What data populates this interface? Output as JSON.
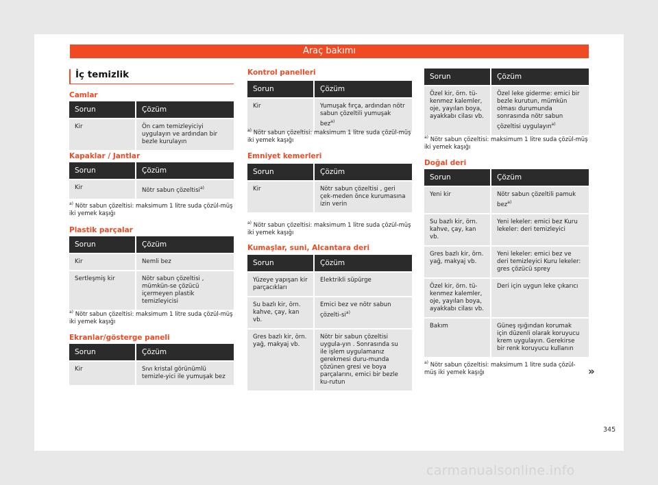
{
  "header": "Araç bakımı",
  "page_title": "İç temizlik",
  "column_header": {
    "problem": "Sorun",
    "solution": "Çözüm"
  },
  "sections": {
    "camlar": {
      "title": "Camlar",
      "rows": [
        [
          "Kir",
          "Ön cam temizleyiciyi uygulayın ve ardından bir bezle kurulayın"
        ]
      ]
    },
    "kapaklar": {
      "title": "Kapaklar / Jantlar",
      "rows": [
        [
          "Kir",
          "Nötr sabun çözeltisi"
        ]
      ],
      "footnote": "Nötr sabun çözeltisi: maksimum 1 litre suda çözül-müş iki yemek kaşığı"
    },
    "plastik": {
      "title": "Plastik parçalar",
      "rows": [
        [
          "Kir",
          "Nemli bez"
        ],
        [
          "Sertleşmiş kir",
          "Nötr sabun çözeltisi , mümkün-se çözücü içermeyen plastik temizleyicisi"
        ]
      ],
      "footnote": "Nötr sabun çözeltisi: maksimum 1 litre suda çözül-müş iki yemek kaşığı"
    },
    "ekranlar": {
      "title": "Ekranlar/gösterge paneli",
      "rows": [
        [
          "Kir",
          "Sıvı kristal görünümlü temizle-yici ile yumuşak bez"
        ]
      ]
    },
    "kontrol": {
      "title": "Kontrol panelleri",
      "rows": [
        [
          "Kir",
          "Yumuşak fırça, ardından nötr sabun çözeltili yumuşak bez"
        ]
      ],
      "footnote": "Nötr sabun çözeltisi: maksimum 1 litre suda çözül-müş iki yemek kaşığı"
    },
    "emniyet": {
      "title": "Emniyet kemerleri",
      "rows": [
        [
          "Kir",
          "Nötr sabun çözeltisi , geri çek-meden önce kurumasına izin verin"
        ]
      ],
      "footnote": "Nötr sabun çözeltisi: maksimum 1 litre suda çözül-müş iki yemek kaşığı"
    },
    "kumas": {
      "title": "Kumaşlar, suni, Alcantara deri",
      "rows": [
        [
          "Yüzeye yapışan kir parçacıkları",
          "Elektrikli süpürge"
        ],
        [
          "Su bazlı kir, örn. kahve, çay, kan vb.",
          "Emici bez ve nötr sabun çözelti-si"
        ],
        [
          "Gres bazlı kir, örn. yağ, makyaj vb.",
          "Nötr bir sabun çözeltisi uygula-yın . Sonrasında su ile işlem uygulamanız gerekmesi duru-munda çözünen gresi ve boya parçalarını, emici bir bezle ku-rutun"
        ]
      ]
    },
    "ozel": {
      "rows": [
        [
          "Özel kir, örn. tü-kenmez kalemler, oje, yayılan boya, ayakkabı cilası vb.",
          "Özel leke giderme: emici bir bezle kurutun, mümkün olması durumunda sonrasında nötr sabun çözeltisi uygulayın"
        ]
      ],
      "footnote": "Nötr sabun çözeltisi: maksimum 1 litre suda çözül-müş iki yemek kaşığı"
    },
    "dogal": {
      "title": "Doğal deri",
      "rows": [
        [
          "Yeni kir",
          "Nötr sabun çözeltili pamuk bez"
        ],
        [
          "Su bazlı kir, örn. kahve, çay, kan vb.",
          "Yeni lekeler: emici bez Kuru lekeler: deri temizleyici"
        ],
        [
          "Gres bazlı kir, örn. yağ, makyaj vb.",
          "Yeni lekeler: emici bez ve deri temizleyici Kuru lekeler: gres çözücü sprey"
        ],
        [
          "Özel kir, örn. tü-kenmez kalemler, oje, yayılan boya, ayakkabı cilası vb.",
          "Deri için uygun leke çıkarıcı"
        ],
        [
          "Bakım",
          "Güneş ışığından korumak için düzenli olarak koruyucu krem uygulayın. Gerekirse bir renk koruyucu kullanın"
        ]
      ],
      "footnote": "Nötr sabun çözeltisi: maksimum 1 litre suda çözül-müş iki yemek kaşığı"
    }
  },
  "footnote_mark": "a)",
  "continue_mark": "»",
  "page_number": "345",
  "watermark": "carmanualsonline.info"
}
